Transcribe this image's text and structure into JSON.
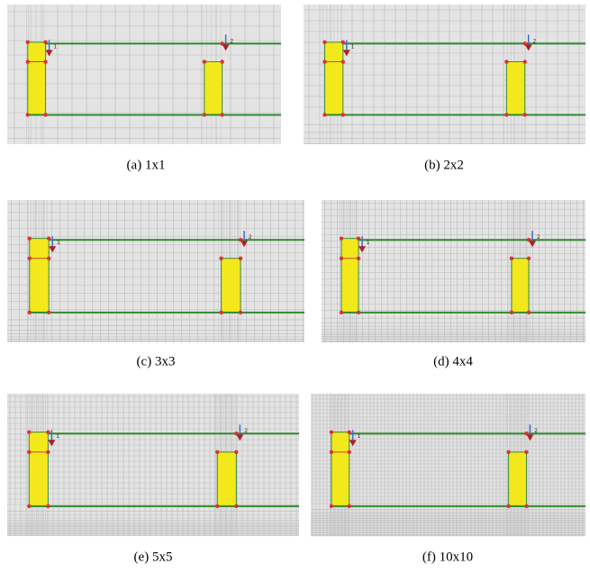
{
  "figure": {
    "panels": [
      {
        "caption": "(a) 1x1",
        "ports": [
          "1",
          "2"
        ]
      },
      {
        "caption": "(b) 2x2",
        "ports": [
          "1",
          "2"
        ]
      },
      {
        "caption": "(c) 3x3",
        "ports": [
          "1",
          "2"
        ]
      },
      {
        "caption": "(d) 4x4",
        "ports": [
          "1",
          "2"
        ]
      },
      {
        "caption": "(e) 5x5",
        "ports": [
          "1",
          "2"
        ]
      },
      {
        "caption": "(f) 10x10",
        "ports": [
          "1",
          "2"
        ]
      }
    ]
  }
}
